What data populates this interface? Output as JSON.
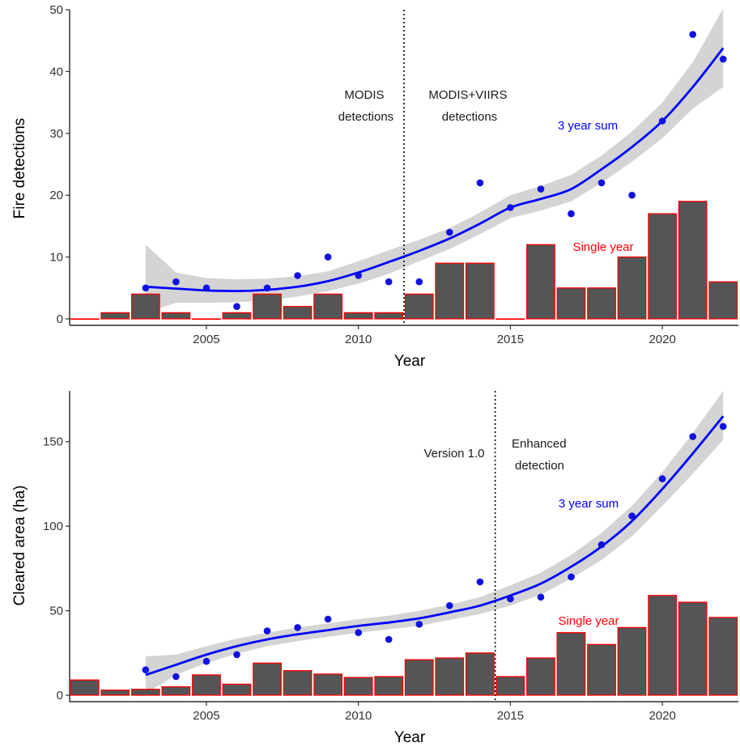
{
  "colors": {
    "bar_fill": "#555555",
    "bar_stroke": "#ff0000",
    "point": "#1010e0",
    "trend_line": "#0000ff",
    "ribbon": "#cccccc",
    "sum_label": "#0000ff",
    "single_label": "#ff0000"
  },
  "chart_data": [
    {
      "type": "bar",
      "xlabel": "Year",
      "ylabel": "Fire detections",
      "xlim": [
        2000.5,
        2022.5
      ],
      "ylim": [
        0,
        50
      ],
      "xticks": [
        2005,
        2010,
        2015,
        2020
      ],
      "yticks": [
        0,
        10,
        20,
        30,
        40,
        50
      ],
      "grid": false,
      "annotations": {
        "before_line": [
          "MODIS",
          "detections"
        ],
        "after_line": [
          "MODIS+VIIRS",
          "detections"
        ],
        "sum_label": "3 year sum",
        "single_label": "Single year"
      },
      "divider_x": 2011.5,
      "series": [
        {
          "name": "Single year",
          "kind": "bar",
          "x": [
            2001,
            2002,
            2003,
            2004,
            2005,
            2006,
            2007,
            2008,
            2009,
            2010,
            2011,
            2012,
            2013,
            2014,
            2015,
            2016,
            2017,
            2018,
            2019,
            2020,
            2021,
            2022
          ],
          "values": [
            0,
            1,
            4,
            1,
            0,
            1,
            4,
            2,
            4,
            1,
            1,
            4,
            9,
            9,
            0,
            12,
            5,
            5,
            10,
            17,
            19,
            6
          ]
        },
        {
          "name": "3 year sum",
          "kind": "scatter",
          "x": [
            2003,
            2004,
            2005,
            2006,
            2007,
            2008,
            2009,
            2010,
            2011,
            2012,
            2013,
            2014,
            2015,
            2016,
            2017,
            2018,
            2019,
            2020,
            2021,
            2022
          ],
          "values": [
            5,
            6,
            5,
            2,
            5,
            7,
            10,
            7,
            6,
            6,
            14,
            22,
            18,
            21,
            17,
            22,
            20,
            32,
            46,
            42
          ]
        },
        {
          "name": "3 year sum",
          "kind": "smooth",
          "x": [
            2003,
            2004,
            2005,
            2006,
            2007,
            2008,
            2009,
            2010,
            2011,
            2012,
            2013,
            2014,
            2015,
            2016,
            2017,
            2018,
            2019,
            2020,
            2021,
            2022
          ],
          "values": [
            5.2,
            4.9,
            4.6,
            4.5,
            4.7,
            5.2,
            6.1,
            7.5,
            9.2,
            11.0,
            13.0,
            15.4,
            18.0,
            19.4,
            21.0,
            24.2,
            27.8,
            32.0,
            37.5,
            43.8
          ],
          "lower": [
            1.0,
            2.6,
            2.6,
            2.7,
            3.0,
            3.6,
            4.5,
            5.7,
            7.3,
            9.3,
            11.3,
            13.7,
            16.3,
            17.5,
            19.0,
            22.0,
            25.4,
            29.2,
            34.0,
            37.5
          ],
          "upper": [
            12.0,
            7.5,
            6.6,
            6.4,
            6.5,
            6.9,
            7.7,
            9.3,
            11.1,
            12.8,
            14.7,
            17.2,
            20.0,
            21.5,
            23.3,
            26.4,
            30.3,
            35.0,
            41.5,
            50.2
          ]
        }
      ]
    },
    {
      "type": "bar",
      "xlabel": "Year",
      "ylabel": "Cleared area (ha)",
      "xlim": [
        2000.5,
        2022.5
      ],
      "ylim": [
        0,
        180
      ],
      "xticks": [
        2005,
        2010,
        2015,
        2020
      ],
      "yticks": [
        0,
        50,
        100,
        150
      ],
      "grid": false,
      "annotations": {
        "before_line": [
          "Version 1.0"
        ],
        "after_line": [
          "Enhanced",
          "detection"
        ],
        "sum_label": "3 year sum",
        "single_label": "Single year"
      },
      "divider_x": 2014.5,
      "series": [
        {
          "name": "Single year",
          "kind": "bar",
          "x": [
            2001,
            2002,
            2003,
            2004,
            2005,
            2006,
            2007,
            2008,
            2009,
            2010,
            2011,
            2012,
            2013,
            2014,
            2015,
            2016,
            2017,
            2018,
            2019,
            2020,
            2021,
            2022
          ],
          "values": [
            9,
            3,
            3.5,
            5,
            12,
            6.5,
            19,
            14.5,
            12.5,
            10.5,
            11,
            21,
            22,
            25,
            11,
            22,
            37,
            30,
            40,
            59,
            55,
            46
          ]
        },
        {
          "name": "3 year sum",
          "kind": "scatter",
          "x": [
            2003,
            2004,
            2005,
            2006,
            2007,
            2008,
            2009,
            2010,
            2011,
            2012,
            2013,
            2014,
            2015,
            2016,
            2017,
            2018,
            2019,
            2020,
            2021,
            2022
          ],
          "values": [
            15,
            11,
            20,
            24,
            38,
            40,
            45,
            37,
            33,
            42,
            53,
            67,
            57,
            58,
            70,
            89,
            106,
            128,
            153,
            159
          ]
        },
        {
          "name": "3 year sum",
          "kind": "smooth",
          "x": [
            2003,
            2004,
            2005,
            2006,
            2007,
            2008,
            2009,
            2010,
            2011,
            2012,
            2013,
            2014,
            2015,
            2016,
            2017,
            2018,
            2019,
            2020,
            2021,
            2022
          ],
          "values": [
            12,
            18,
            24,
            29,
            33,
            36,
            38.5,
            41,
            43,
            45.5,
            49,
            53,
            59,
            66,
            76,
            88,
            103,
            122,
            143,
            165
          ],
          "lower": [
            1,
            12,
            19,
            24.5,
            29,
            32,
            34.5,
            37,
            39,
            41,
            44.5,
            48,
            53,
            59.5,
            69,
            80,
            94,
            112,
            131,
            151
          ],
          "upper": [
            23,
            24,
            29,
            33.5,
            37,
            40,
            42.5,
            45,
            47,
            50,
            53.5,
            58,
            65,
            72.5,
            83,
            96,
            112,
            132,
            155,
            180
          ]
        }
      ]
    }
  ]
}
